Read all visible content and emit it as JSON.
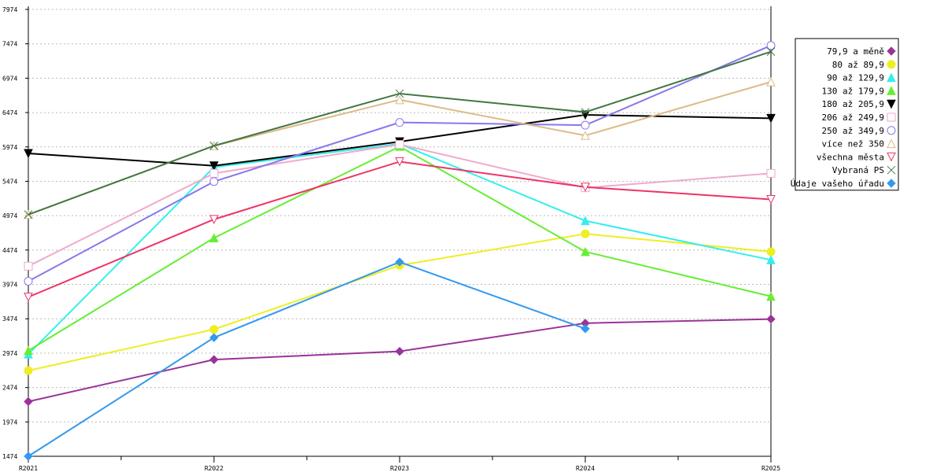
{
  "chart_data": {
    "type": "line",
    "categories": [
      "R2021",
      "R2022",
      "R2023",
      "R2024",
      "R2025"
    ],
    "yticks": [
      "1474",
      "1974",
      "2474",
      "2974",
      "3474",
      "3974",
      "4474",
      "4974",
      "5474",
      "5974",
      "6474",
      "6974",
      "7474",
      "7974"
    ],
    "ylim": [
      1474,
      7974
    ],
    "grid": true,
    "legend_position": "right",
    "series": [
      {
        "name": "79,9 a měně",
        "color": "#993399",
        "marker": "diamond",
        "values": [
          2270,
          2880,
          3000,
          3410,
          3470
        ]
      },
      {
        "name": "80 až 89,9",
        "color": "#eeee22",
        "marker": "circle",
        "values": [
          2720,
          3320,
          4250,
          4710,
          4450
        ]
      },
      {
        "name": "90 až 129,9",
        "color": "#33eeee",
        "marker": "triangle",
        "values": [
          2960,
          5680,
          6020,
          4900,
          4330
        ]
      },
      {
        "name": "130 až 179,9",
        "color": "#66ee33",
        "marker": "triangle",
        "values": [
          3010,
          4650,
          5980,
          4450,
          3800
        ]
      },
      {
        "name": "180 až 205,9",
        "color": "#000000",
        "marker": "triangle-down",
        "values": [
          5880,
          5700,
          6050,
          6440,
          6390
        ]
      },
      {
        "name": "206 až 249,9",
        "color": "#eeaacc",
        "marker": "square-open",
        "values": [
          4240,
          5590,
          6010,
          5380,
          5590
        ]
      },
      {
        "name": "250 až 349,9",
        "color": "#8877ee",
        "marker": "circle-open",
        "values": [
          4020,
          5470,
          6330,
          6290,
          7450
        ]
      },
      {
        "name": "více než 350",
        "color": "#ddbb88",
        "marker": "triangle-open",
        "values": [
          4990,
          5990,
          6660,
          6140,
          6920
        ]
      },
      {
        "name": "všechna města",
        "color": "#ee3366",
        "marker": "triangle-down-open",
        "values": [
          3790,
          4920,
          5760,
          5390,
          5210
        ]
      },
      {
        "name": "Vybraná PS",
        "color": "#447744",
        "marker": "x",
        "values": [
          4990,
          5990,
          6750,
          6480,
          7360
        ]
      },
      {
        "name": "Údaje vašeho úřadu",
        "color": "#3399ee",
        "marker": "diamond",
        "values": [
          1474,
          3200,
          4300,
          3330,
          null
        ]
      }
    ]
  }
}
